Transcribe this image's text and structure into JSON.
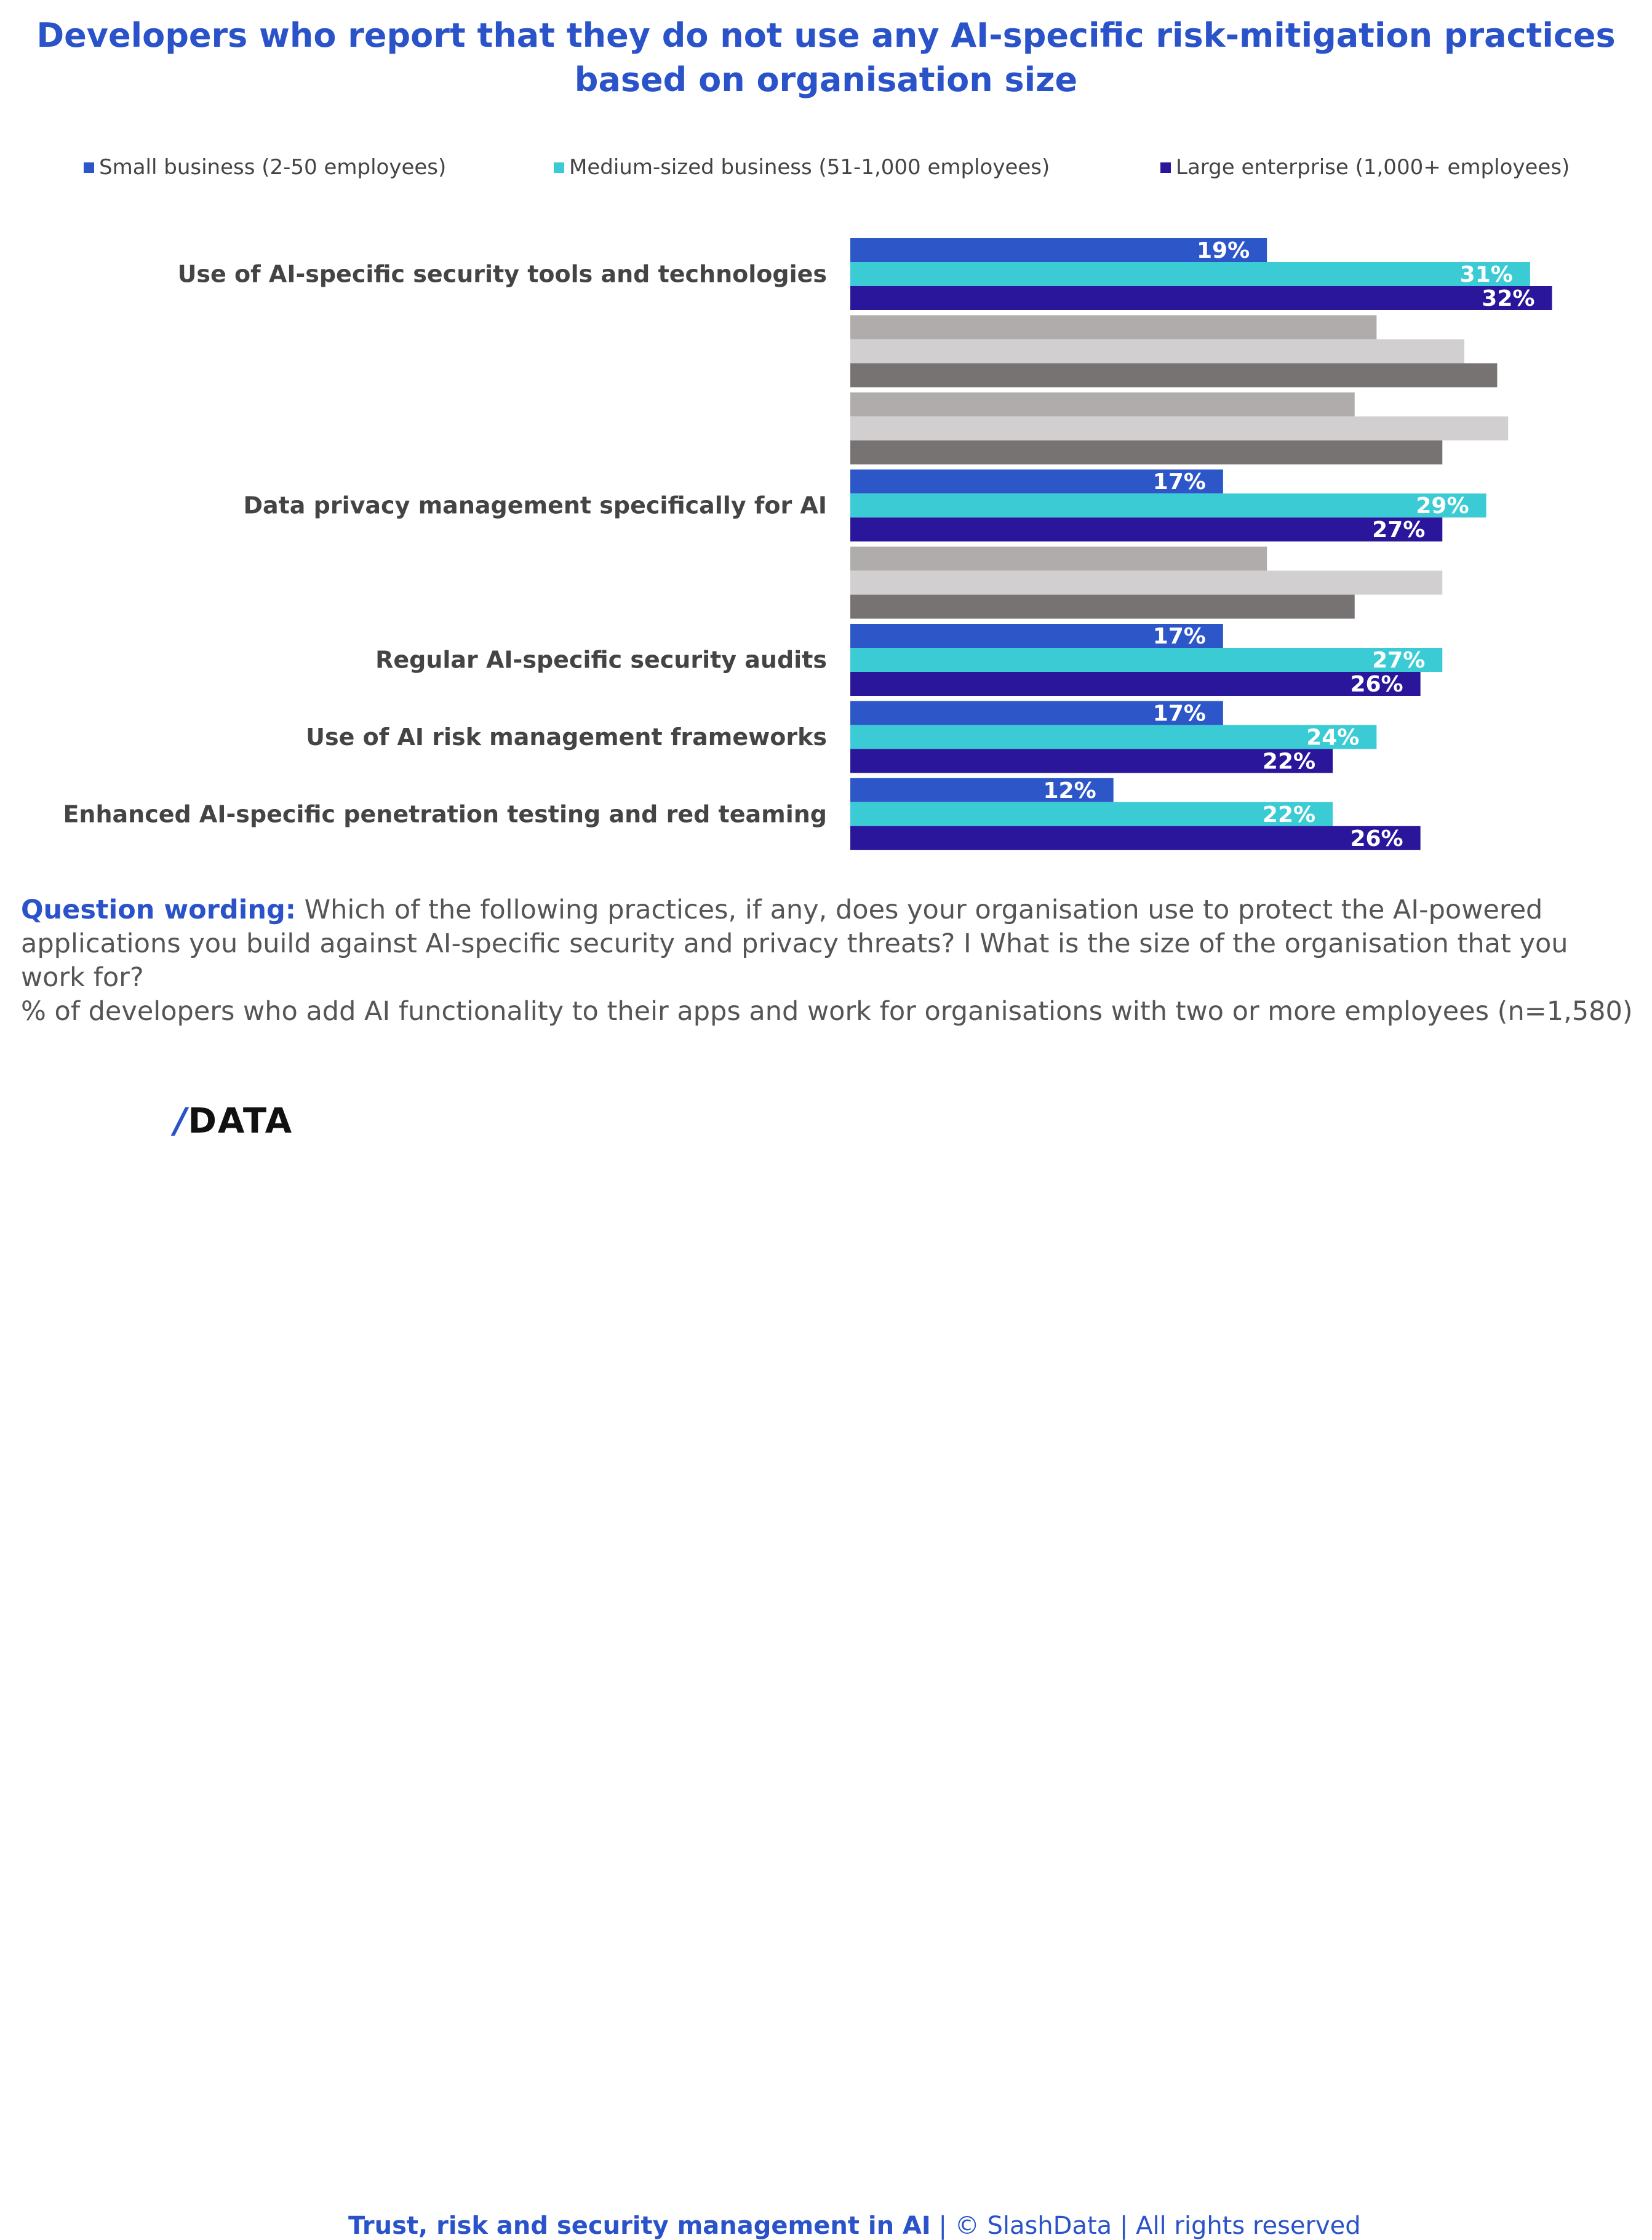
{
  "chart_data": {
    "type": "bar",
    "orientation": "horizontal",
    "title": "Developers who report that they do not use any AI-specific risk-mitigation practices based on organisation size",
    "categories": [
      "Use of AI-specific security tools and technologies",
      "",
      "",
      "Data privacy management specifically for AI",
      "",
      "Regular AI-specific security audits",
      "Use of AI risk management frameworks",
      "Enhanced AI-specific penetration testing and red teaming"
    ],
    "highlighted": [
      true,
      false,
      false,
      true,
      false,
      true,
      true,
      true
    ],
    "series": [
      {
        "name": "Small business (2-50 employees)",
        "color": "#2d57c8",
        "muted_color": "#b0acab",
        "values": [
          19,
          24,
          23,
          17,
          19,
          17,
          17,
          12
        ],
        "labels": [
          "19%",
          "",
          "",
          "17%",
          "",
          "17%",
          "17%",
          "12%"
        ]
      },
      {
        "name": "Medium-sized business (51-1,000 employees)",
        "color": "#3bcbd4",
        "muted_color": "#d1cfd0",
        "values": [
          31,
          28,
          30,
          29,
          27,
          27,
          24,
          22
        ],
        "labels": [
          "31%",
          "",
          "",
          "29%",
          "",
          "27%",
          "24%",
          "22%"
        ]
      },
      {
        "name": "Large enterprise (1,000+ employees)",
        "color": "#29169a",
        "muted_color": "#777372",
        "values": [
          32,
          29.5,
          27,
          27,
          23,
          26,
          22,
          26
        ],
        "labels": [
          "32%",
          "",
          "",
          "27%",
          "",
          "26%",
          "22%",
          "26%"
        ]
      }
    ],
    "xlim": [
      0,
      35
    ],
    "unit": "%",
    "legend": "top",
    "grid": false
  },
  "note": {
    "label": "Question wording:",
    "text": "Which of the following practices, if any, does your organisation use to protect the AI-powered applications you build against AI-specific security and privacy threats? I What is the size of the organisation that you work for?",
    "base": "% of developers who add AI functionality to their apps and work for organisations with two or more employees (n=1,580)"
  },
  "footer": {
    "logo": "/DATA",
    "report": "Trust, risk and security management in AI",
    "copyright": "| © SlashData | All rights reserved"
  }
}
